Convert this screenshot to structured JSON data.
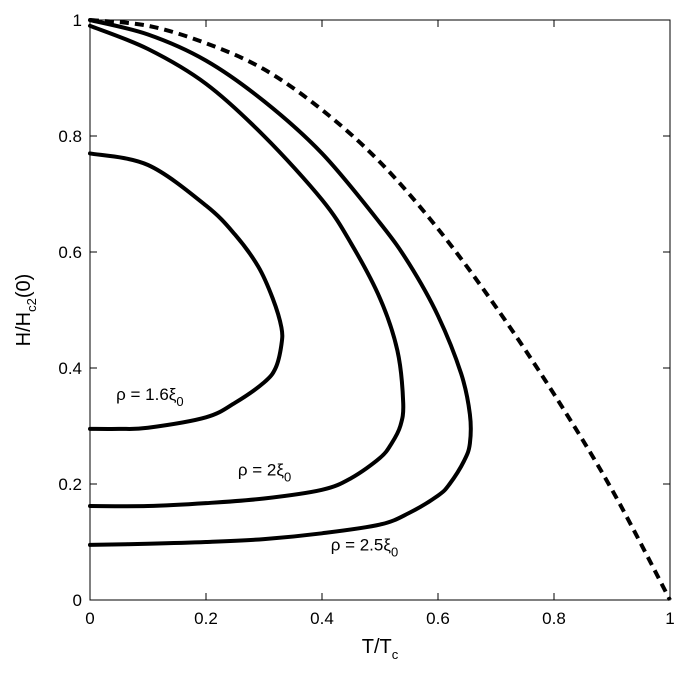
{
  "chart_data": {
    "type": "line",
    "xlabel": {
      "main": "T/T",
      "sub": "c"
    },
    "ylabel": {
      "main": "H/H",
      "sub": "c2",
      "tail": "(0)"
    },
    "xlim": [
      0,
      1
    ],
    "ylim": [
      0,
      1
    ],
    "xticks": [
      0,
      0.2,
      0.4,
      0.6,
      0.8,
      1
    ],
    "yticks": [
      0,
      0.2,
      0.4,
      0.6,
      0.8,
      1
    ],
    "xtick_labels": [
      "0",
      "0.2",
      "0.4",
      "0.6",
      "0.8",
      "1"
    ],
    "ytick_labels": [
      "0",
      "0.2",
      "0.4",
      "0.6",
      "0.8",
      "1"
    ],
    "grid": false,
    "series": [
      {
        "style": "dashed",
        "x": [
          0,
          0.1,
          0.2,
          0.3,
          0.4,
          0.5,
          0.6,
          0.7,
          0.8,
          0.9,
          1.0
        ],
        "y": [
          1.0,
          0.99,
          0.96,
          0.915,
          0.845,
          0.755,
          0.64,
          0.505,
          0.355,
          0.19,
          0.0
        ]
      },
      {
        "style": "solid",
        "x": [
          0,
          0.1,
          0.2,
          0.25,
          0.29,
          0.315,
          0.33,
          0.33,
          0.32,
          0.3,
          0.25,
          0.2,
          0.1,
          0.05,
          0
        ],
        "y": [
          0.77,
          0.75,
          0.68,
          0.63,
          0.575,
          0.52,
          0.47,
          0.44,
          0.4,
          0.375,
          0.34,
          0.315,
          0.297,
          0.295,
          0.295
        ]
      },
      {
        "style": "solid",
        "x": [
          0,
          0.1,
          0.2,
          0.3,
          0.4,
          0.45,
          0.5,
          0.53,
          0.54,
          0.535,
          0.52,
          0.5,
          0.45,
          0.4,
          0.3,
          0.2,
          0.1,
          0
        ],
        "y": [
          0.99,
          0.95,
          0.89,
          0.8,
          0.69,
          0.615,
          0.52,
          0.43,
          0.34,
          0.3,
          0.27,
          0.245,
          0.21,
          0.19,
          0.175,
          0.167,
          0.162,
          0.162
        ]
      },
      {
        "style": "solid",
        "x": [
          0,
          0.1,
          0.2,
          0.3,
          0.4,
          0.5,
          0.55,
          0.6,
          0.64,
          0.655,
          0.655,
          0.645,
          0.62,
          0.6,
          0.55,
          0.5,
          0.4,
          0.3,
          0.2,
          0.1,
          0
        ],
        "y": [
          1.0,
          0.975,
          0.93,
          0.86,
          0.77,
          0.65,
          0.58,
          0.49,
          0.39,
          0.32,
          0.27,
          0.24,
          0.2,
          0.18,
          0.15,
          0.13,
          0.115,
          0.105,
          0.1,
          0.097,
          0.095
        ]
      }
    ],
    "annotations": [
      {
        "main": "ρ = 1.6ξ",
        "sub": "0",
        "x": 0.045,
        "y": 0.345
      },
      {
        "main": "ρ = 2ξ",
        "sub": "0",
        "x": 0.255,
        "y": 0.215
      },
      {
        "main": "ρ = 2.5ξ",
        "sub": "0",
        "x": 0.415,
        "y": 0.085
      }
    ]
  }
}
